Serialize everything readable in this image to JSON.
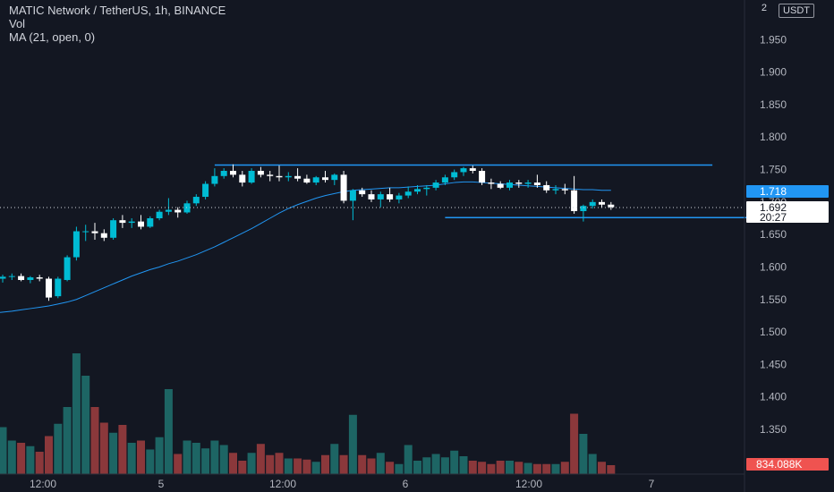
{
  "legend": {
    "title": "MATIC Network / TetherUS, 1h, BINANCE",
    "vol": "Vol",
    "ma": "MA (21, open, 0)"
  },
  "price_axis": {
    "currency": "USDT",
    "corner": "2",
    "ticks": [
      "1.950",
      "1.900",
      "1.850",
      "1.800",
      "1.750",
      "1.700",
      "1.650",
      "1.600",
      "1.550",
      "1.500",
      "1.450",
      "1.400",
      "1.350"
    ],
    "ma_label": "1.718",
    "last_price": "1.692",
    "countdown": "20:27",
    "volume_label": "834.088K"
  },
  "time_axis": {
    "ticks": [
      "12:00",
      "5",
      "12:00",
      "6",
      "12:00",
      "7"
    ]
  },
  "colors": {
    "up": "#26a69a",
    "down": "#ef5350",
    "up_candle": "#00bcd4",
    "down_candle": "#ffffff",
    "ma": "#2196f3",
    "background": "#131722"
  },
  "chart_data": {
    "type": "candlestick",
    "interval": "1h",
    "price_range": [
      1.55,
      2.0
    ],
    "candles": [
      [
        1.582,
        1.588,
        1.576,
        1.585,
        420
      ],
      [
        1.585,
        1.59,
        1.58,
        1.586,
        300
      ],
      [
        1.586,
        1.59,
        1.578,
        1.58,
        280
      ],
      [
        1.58,
        1.586,
        1.575,
        1.584,
        250
      ],
      [
        1.584,
        1.588,
        1.578,
        1.582,
        200
      ],
      [
        1.582,
        1.585,
        1.548,
        1.553,
        340
      ],
      [
        1.555,
        1.585,
        1.552,
        1.582,
        450
      ],
      [
        1.58,
        1.618,
        1.578,
        1.615,
        600
      ],
      [
        1.615,
        1.662,
        1.61,
        1.655,
        1080
      ],
      [
        1.655,
        1.665,
        1.64,
        1.655,
        880
      ],
      [
        1.655,
        1.668,
        1.642,
        1.652,
        600
      ],
      [
        1.652,
        1.658,
        1.64,
        1.645,
        460
      ],
      [
        1.645,
        1.675,
        1.642,
        1.672,
        370
      ],
      [
        1.672,
        1.68,
        1.66,
        1.668,
        440
      ],
      [
        1.668,
        1.675,
        1.66,
        1.67,
        280
      ],
      [
        1.67,
        1.68,
        1.658,
        1.662,
        300
      ],
      [
        1.662,
        1.678,
        1.66,
        1.675,
        220
      ],
      [
        1.675,
        1.688,
        1.672,
        1.685,
        330
      ],
      [
        1.685,
        1.706,
        1.68,
        1.688,
        760
      ],
      [
        1.688,
        1.692,
        1.676,
        1.684,
        180
      ],
      [
        1.684,
        1.702,
        1.682,
        1.698,
        300
      ],
      [
        1.698,
        1.712,
        1.694,
        1.708,
        280
      ],
      [
        1.708,
        1.732,
        1.704,
        1.728,
        230
      ],
      [
        1.728,
        1.752,
        1.724,
        1.74,
        300
      ],
      [
        1.74,
        1.752,
        1.736,
        1.748,
        260
      ],
      [
        1.748,
        1.758,
        1.738,
        1.742,
        190
      ],
      [
        1.742,
        1.748,
        1.724,
        1.73,
        120
      ],
      [
        1.73,
        1.752,
        1.728,
        1.748,
        190
      ],
      [
        1.748,
        1.754,
        1.738,
        1.742,
        270
      ],
      [
        1.742,
        1.748,
        1.732,
        1.74,
        170
      ],
      [
        1.74,
        1.756,
        1.732,
        1.738,
        190
      ],
      [
        1.738,
        1.746,
        1.732,
        1.74,
        140
      ],
      [
        1.74,
        1.752,
        1.732,
        1.736,
        140
      ],
      [
        1.736,
        1.742,
        1.728,
        1.73,
        130
      ],
      [
        1.73,
        1.74,
        1.726,
        1.738,
        110
      ],
      [
        1.738,
        1.748,
        1.73,
        1.734,
        170
      ],
      [
        1.734,
        1.744,
        1.726,
        1.742,
        270
      ],
      [
        1.742,
        1.748,
        1.698,
        1.702,
        170
      ],
      [
        1.702,
        1.72,
        1.672,
        1.718,
        530
      ],
      [
        1.718,
        1.722,
        1.708,
        1.712,
        170
      ],
      [
        1.712,
        1.718,
        1.7,
        1.704,
        140
      ],
      [
        1.704,
        1.716,
        1.692,
        1.712,
        190
      ],
      [
        1.712,
        1.722,
        1.7,
        1.704,
        110
      ],
      [
        1.704,
        1.714,
        1.698,
        1.71,
        90
      ],
      [
        1.71,
        1.724,
        1.706,
        1.716,
        260
      ],
      [
        1.716,
        1.726,
        1.712,
        1.72,
        120
      ],
      [
        1.72,
        1.726,
        1.71,
        1.722,
        150
      ],
      [
        1.722,
        1.734,
        1.718,
        1.73,
        180
      ],
      [
        1.73,
        1.742,
        1.726,
        1.738,
        150
      ],
      [
        1.738,
        1.75,
        1.734,
        1.746,
        210
      ],
      [
        1.746,
        1.754,
        1.74,
        1.752,
        160
      ],
      [
        1.752,
        1.756,
        1.744,
        1.748,
        120
      ],
      [
        1.748,
        1.752,
        1.726,
        1.73,
        110
      ],
      [
        1.73,
        1.736,
        1.72,
        1.728,
        90
      ],
      [
        1.728,
        1.732,
        1.72,
        1.722,
        120
      ],
      [
        1.722,
        1.734,
        1.718,
        1.73,
        120
      ],
      [
        1.73,
        1.734,
        1.722,
        1.728,
        110
      ],
      [
        1.728,
        1.734,
        1.722,
        1.73,
        100
      ],
      [
        1.73,
        1.742,
        1.722,
        1.726,
        90
      ],
      [
        1.726,
        1.732,
        1.714,
        1.718,
        90
      ],
      [
        1.718,
        1.726,
        1.712,
        1.72,
        90
      ],
      [
        1.72,
        1.728,
        1.712,
        1.718,
        110
      ],
      [
        1.718,
        1.74,
        1.682,
        1.686,
        540
      ],
      [
        1.686,
        1.696,
        1.67,
        1.694,
        360
      ],
      [
        1.694,
        1.704,
        1.69,
        1.7,
        180
      ],
      [
        1.7,
        1.704,
        1.692,
        1.696,
        110
      ],
      [
        1.696,
        1.7,
        1.688,
        1.692,
        80
      ]
    ],
    "ma_series": [
      1.53,
      1.532,
      1.534,
      1.536,
      1.538,
      1.54,
      1.543,
      1.546,
      1.55,
      1.556,
      1.562,
      1.568,
      1.574,
      1.58,
      1.586,
      1.591,
      1.596,
      1.6,
      1.605,
      1.609,
      1.614,
      1.619,
      1.625,
      1.631,
      1.638,
      1.645,
      1.652,
      1.659,
      1.667,
      1.675,
      1.683,
      1.69,
      1.696,
      1.701,
      1.706,
      1.71,
      1.713,
      1.716,
      1.718,
      1.719,
      1.72,
      1.721,
      1.722,
      1.722,
      1.723,
      1.724,
      1.725,
      1.726,
      1.728,
      1.73,
      1.731,
      1.731,
      1.73,
      1.729,
      1.728,
      1.727,
      1.726,
      1.725,
      1.724,
      1.723,
      1.722,
      1.721,
      1.72,
      1.719,
      1.719,
      1.718,
      1.718
    ],
    "horizontal_lines": [
      {
        "price": 1.757,
        "from": 23,
        "to": 77
      },
      {
        "price": 1.676,
        "from": 48,
        "to": 84
      }
    ]
  }
}
